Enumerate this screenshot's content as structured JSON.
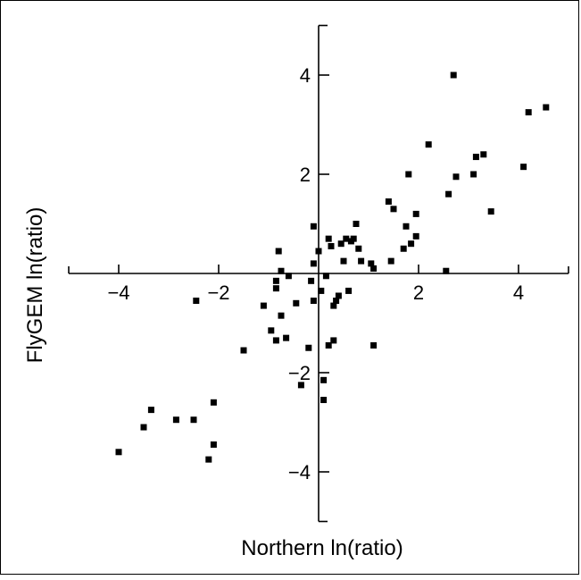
{
  "chart_data": {
    "type": "scatter",
    "title": "",
    "xlabel": "Northern ln(ratio)",
    "ylabel": "FlyGEM ln(ratio)",
    "xlim": [
      -5,
      5
    ],
    "ylim": [
      -5,
      5
    ],
    "xticks": [
      -4,
      -2,
      2,
      4
    ],
    "yticks": [
      -4,
      -2,
      2,
      4
    ],
    "grid": false,
    "marker": "square",
    "color": "#000000",
    "points": [
      [
        -4.0,
        -3.6
      ],
      [
        -3.5,
        -3.1
      ],
      [
        -3.35,
        -2.75
      ],
      [
        -2.85,
        -2.95
      ],
      [
        -2.5,
        -2.95
      ],
      [
        -2.1,
        -2.6
      ],
      [
        -2.1,
        -3.45
      ],
      [
        -2.2,
        -3.75
      ],
      [
        -2.45,
        -0.55
      ],
      [
        -1.5,
        -1.55
      ],
      [
        -1.1,
        -0.65
      ],
      [
        -0.95,
        -1.15
      ],
      [
        -0.85,
        -1.35
      ],
      [
        -0.75,
        -0.85
      ],
      [
        -0.65,
        -1.3
      ],
      [
        -0.85,
        -0.15
      ],
      [
        -0.85,
        -0.3
      ],
      [
        -0.75,
        0.05
      ],
      [
        -0.8,
        0.45
      ],
      [
        -0.6,
        -0.05
      ],
      [
        -0.45,
        -0.6
      ],
      [
        -0.35,
        -2.25
      ],
      [
        -0.2,
        -1.5
      ],
      [
        -0.15,
        -0.15
      ],
      [
        -0.1,
        0.2
      ],
      [
        -0.1,
        0.95
      ],
      [
        -0.1,
        -0.55
      ],
      [
        0.0,
        0.45
      ],
      [
        0.05,
        -0.35
      ],
      [
        0.1,
        -2.15
      ],
      [
        0.1,
        -2.55
      ],
      [
        0.15,
        -0.05
      ],
      [
        0.2,
        0.7
      ],
      [
        0.25,
        0.55
      ],
      [
        0.2,
        -1.45
      ],
      [
        0.3,
        -1.35
      ],
      [
        0.3,
        -0.65
      ],
      [
        0.35,
        -0.55
      ],
      [
        0.4,
        -0.45
      ],
      [
        0.45,
        0.6
      ],
      [
        0.5,
        0.25
      ],
      [
        0.55,
        0.7
      ],
      [
        0.6,
        -0.35
      ],
      [
        0.65,
        0.65
      ],
      [
        0.7,
        0.7
      ],
      [
        0.75,
        1.0
      ],
      [
        0.8,
        0.5
      ],
      [
        0.85,
        0.25
      ],
      [
        1.05,
        0.2
      ],
      [
        1.1,
        0.1
      ],
      [
        1.1,
        -1.45
      ],
      [
        1.4,
        1.45
      ],
      [
        1.45,
        0.25
      ],
      [
        1.5,
        1.3
      ],
      [
        1.7,
        0.5
      ],
      [
        1.75,
        0.95
      ],
      [
        1.8,
        2.0
      ],
      [
        1.85,
        0.6
      ],
      [
        1.95,
        0.75
      ],
      [
        1.95,
        1.2
      ],
      [
        2.2,
        2.6
      ],
      [
        2.55,
        0.05
      ],
      [
        2.6,
        1.6
      ],
      [
        2.75,
        1.95
      ],
      [
        2.7,
        4.0
      ],
      [
        3.1,
        2.0
      ],
      [
        3.15,
        2.35
      ],
      [
        3.3,
        2.4
      ],
      [
        3.45,
        1.25
      ],
      [
        4.1,
        2.15
      ],
      [
        4.2,
        3.25
      ],
      [
        4.55,
        3.35
      ]
    ]
  }
}
